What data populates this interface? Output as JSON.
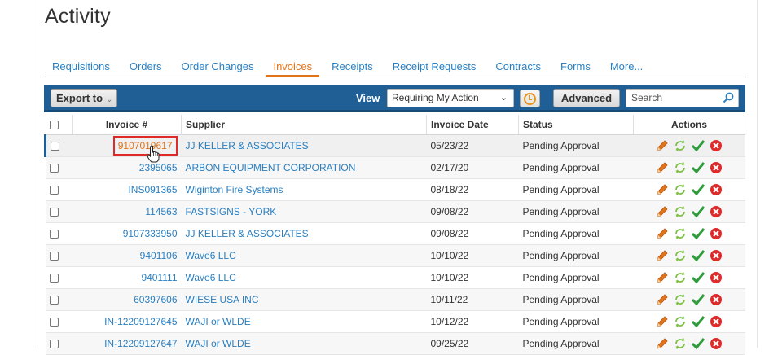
{
  "page": {
    "title": "Activity"
  },
  "tabs": [
    {
      "label": "Requisitions",
      "active": false
    },
    {
      "label": "Orders",
      "active": false
    },
    {
      "label": "Order Changes",
      "active": false
    },
    {
      "label": "Invoices",
      "active": true
    },
    {
      "label": "Receipts",
      "active": false
    },
    {
      "label": "Receipt Requests",
      "active": false
    },
    {
      "label": "Contracts",
      "active": false
    },
    {
      "label": "Forms",
      "active": false
    },
    {
      "label": "More...",
      "active": false
    }
  ],
  "toolbar": {
    "export_label": "Export to",
    "view_label": "View",
    "view_selected": "Requiring My Action",
    "advanced_label": "Advanced",
    "search_placeholder": "Search"
  },
  "table": {
    "headers": {
      "invoice": "Invoice #",
      "supplier": "Supplier",
      "date": "Invoice Date",
      "status": "Status",
      "actions": "Actions"
    },
    "rows": [
      {
        "invoice": "9107019617",
        "supplier": "JJ KELLER & ASSOCIATES",
        "date": "05/23/22",
        "status": "Pending Approval"
      },
      {
        "invoice": "2395065",
        "supplier": "ARBON EQUIPMENT CORPORATION",
        "date": "02/17/20",
        "status": "Pending Approval"
      },
      {
        "invoice": "INS091365",
        "supplier": "Wiginton Fire Systems",
        "date": "08/18/22",
        "status": "Pending Approval"
      },
      {
        "invoice": "114563",
        "supplier": "FASTSIGNS - YORK",
        "date": "09/08/22",
        "status": "Pending Approval"
      },
      {
        "invoice": "9107333950",
        "supplier": "JJ KELLER & ASSOCIATES",
        "date": "09/08/22",
        "status": "Pending Approval"
      },
      {
        "invoice": "9401106",
        "supplier": "Wave6 LLC",
        "date": "10/10/22",
        "status": "Pending Approval"
      },
      {
        "invoice": "9401111",
        "supplier": "Wave6 LLC",
        "date": "10/10/22",
        "status": "Pending Approval"
      },
      {
        "invoice": "60397606",
        "supplier": "WIESE USA INC",
        "date": "10/11/22",
        "status": "Pending Approval"
      },
      {
        "invoice": "IN-12209127645",
        "supplier": "WAJI or WLDE",
        "date": "10/12/22",
        "status": "Pending Approval"
      },
      {
        "invoice": "IN-12209127647",
        "supplier": "WAJI or WLDE",
        "date": "09/25/22",
        "status": "Pending Approval"
      }
    ]
  },
  "colors": {
    "accent": "#e0741c",
    "link": "#2a7fc0",
    "toolbar": "#1f5f96",
    "highlight_box": "#e02a2a"
  },
  "icons": [
    "pencil-icon",
    "refresh-icon",
    "approve-check-icon",
    "reject-x-icon",
    "clock-icon",
    "search-icon",
    "hand-cursor-icon"
  ]
}
